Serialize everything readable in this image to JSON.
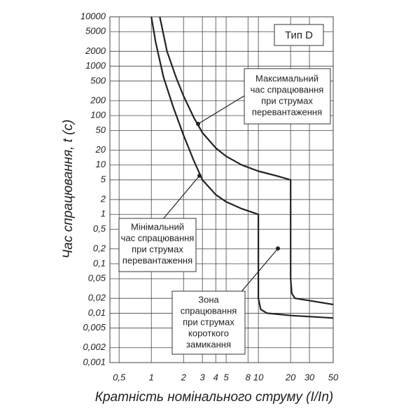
{
  "chart_data": {
    "type": "line",
    "xlabel": "Кратність номінального струму (I/In)",
    "ylabel": "Час спрацювання, t (c)",
    "log_x": true,
    "log_y": true,
    "grid": true,
    "xlim": [
      0.41,
      50
    ],
    "ylim": [
      0.001,
      10000
    ],
    "xticks": [
      {
        "value": 0.5,
        "label": "0,5"
      },
      1,
      2,
      3,
      4,
      5,
      8,
      10,
      20,
      30,
      50
    ],
    "yticks": [
      10000,
      5000,
      2000,
      1000,
      500,
      200,
      100,
      50,
      20,
      10,
      5,
      2,
      1,
      {
        "value": 0.5,
        "label": "0,5"
      },
      {
        "value": 0.2,
        "label": "0,2"
      },
      {
        "value": 0.1,
        "label": "0,1"
      },
      {
        "value": 0.05,
        "label": "0,05"
      },
      {
        "value": 0.02,
        "label": "0,02"
      },
      {
        "value": 0.01,
        "label": "0,01"
      },
      {
        "value": 0.005,
        "label": "0,005"
      },
      {
        "value": 0.002,
        "label": "0,002"
      },
      {
        "value": 0.001,
        "label": "0,001"
      }
    ],
    "series": [
      {
        "color": "#222222",
        "x": [
          1.2,
          1.4,
          1.7,
          2,
          2.5,
          3,
          4,
          5,
          7,
          10,
          15,
          20,
          20,
          20.5,
          22,
          30,
          50
        ],
        "values": [
          10000,
          2000,
          600,
          250,
          90,
          45,
          22,
          15,
          10,
          7.5,
          6,
          5,
          0.05,
          0.025,
          0.02,
          0.018,
          0.015
        ]
      },
      {
        "color": "#222222",
        "x": [
          1,
          1.1,
          1.3,
          1.6,
          2,
          2.5,
          3,
          4,
          5,
          7,
          10,
          10,
          10.5,
          12,
          20,
          50
        ],
        "values": [
          10000,
          3000,
          600,
          150,
          40,
          12,
          5,
          2.5,
          1.8,
          1.3,
          1,
          0.02,
          0.012,
          0.01,
          0.009,
          0.008
        ]
      }
    ],
    "annotations": {
      "type_label": "Тип D",
      "max_note": [
        "Максимальний",
        "час спрацювання",
        "при струмах",
        "перевантаження"
      ],
      "min_note": [
        "Мінімальний",
        "час спрацювання",
        "при струмах",
        "перевантаження"
      ],
      "zone_note": [
        "Зона",
        "спрацювання",
        "при струмах",
        "короткого",
        "замикання"
      ]
    }
  }
}
